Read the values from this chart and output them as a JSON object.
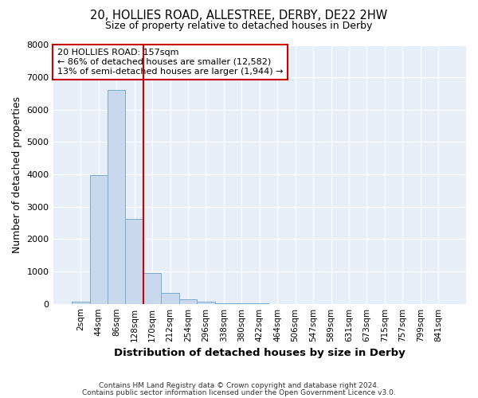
{
  "title1": "20, HOLLIES ROAD, ALLESTREE, DERBY, DE22 2HW",
  "title2": "Size of property relative to detached houses in Derby",
  "xlabel": "Distribution of detached houses by size in Derby",
  "ylabel": "Number of detached properties",
  "categories": [
    "2sqm",
    "44sqm",
    "86sqm",
    "128sqm",
    "170sqm",
    "212sqm",
    "254sqm",
    "296sqm",
    "338sqm",
    "380sqm",
    "422sqm",
    "464sqm",
    "506sqm",
    "547sqm",
    "589sqm",
    "631sqm",
    "673sqm",
    "715sqm",
    "757sqm",
    "799sqm",
    "841sqm"
  ],
  "values": [
    70,
    3980,
    6600,
    2620,
    950,
    330,
    130,
    60,
    10,
    5,
    5,
    0,
    0,
    0,
    0,
    0,
    0,
    0,
    0,
    0,
    0
  ],
  "bar_color": "#c9d9ed",
  "bar_edge_color": "#7aaad0",
  "vline_x_index": 4,
  "vline_color": "#cc0000",
  "annotation_text": "20 HOLLIES ROAD: 157sqm\n← 86% of detached houses are smaller (12,582)\n13% of semi-detached houses are larger (1,944) →",
  "annotation_box_color": "#cc0000",
  "ylim": [
    0,
    8000
  ],
  "yticks": [
    0,
    1000,
    2000,
    3000,
    4000,
    5000,
    6000,
    7000,
    8000
  ],
  "footer1": "Contains HM Land Registry data © Crown copyright and database right 2024.",
  "footer2": "Contains public sector information licensed under the Open Government Licence v3.0.",
  "bg_color": "#ffffff",
  "plot_bg_color": "#e8eef8"
}
